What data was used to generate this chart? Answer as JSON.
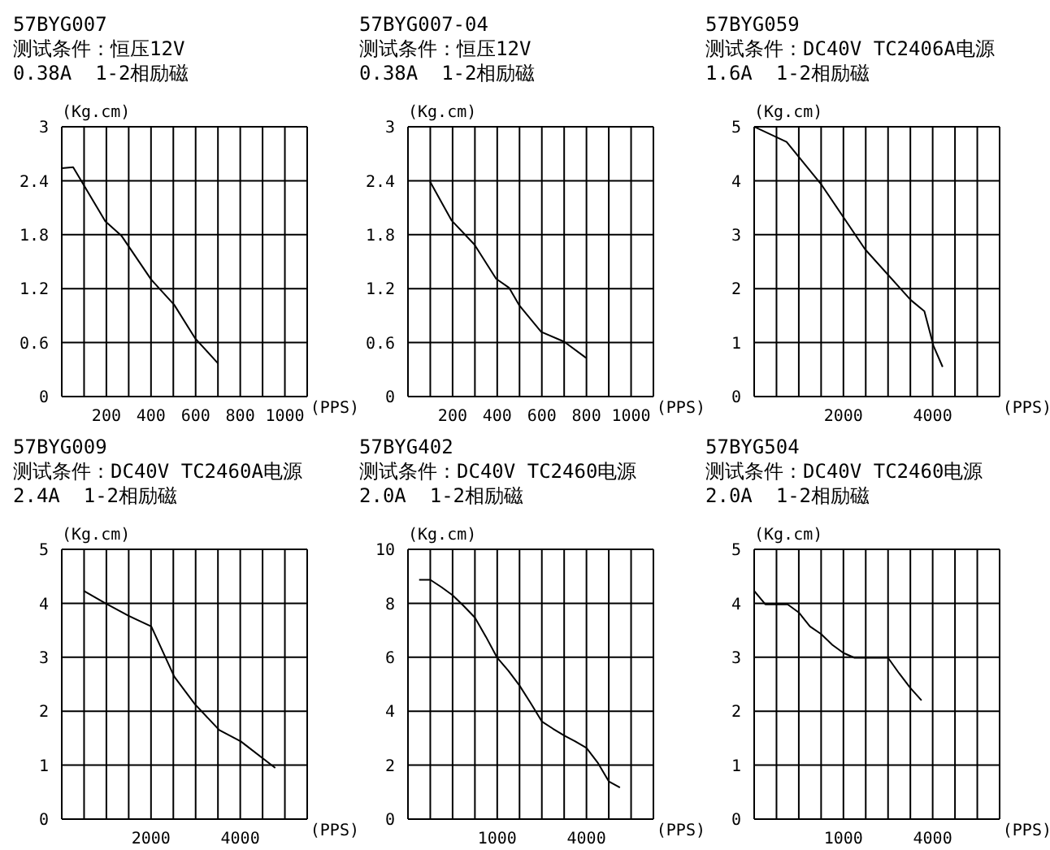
{
  "chart_data": [
    {
      "type": "line",
      "title": "57BYG007",
      "subtitle": "测试条件：恒压12V",
      "annotations": [
        "0.38A  1-2相励磁"
      ],
      "xlabel": "(PPS)",
      "ylabel": "(Kg.cm)",
      "color": "#000000",
      "marker": "none",
      "grid": true,
      "x": [
        0,
        51,
        195,
        267,
        401,
        504,
        597,
        700
      ],
      "values": [
        2.54,
        2.55,
        1.95,
        1.79,
        1.3,
        1.02,
        0.65,
        0.37
      ],
      "xlim": [
        0,
        1100
      ],
      "xticks": [
        {
          "value": 0,
          "label": null
        },
        {
          "value": 100,
          "label": null
        },
        200,
        {
          "value": 300,
          "label": null
        },
        400,
        {
          "value": 500,
          "label": null
        },
        600,
        {
          "value": 700,
          "label": null
        },
        800,
        {
          "value": 900,
          "label": null
        },
        1000,
        {
          "value": 1100,
          "label": null
        }
      ],
      "ylim": [
        0,
        3
      ],
      "yticks": [
        0,
        0.6,
        1.2,
        1.8,
        2.4,
        3
      ]
    },
    {
      "type": "line",
      "title": "57BYG007-04",
      "subtitle": "测试条件：恒压12V",
      "annotations": [
        "0.38A  1-2相励磁"
      ],
      "xlabel": "(PPS)",
      "ylabel": "(Kg.cm)",
      "color": "#000000",
      "marker": "none",
      "grid": true,
      "x": [
        99,
        195,
        298,
        395,
        453,
        500,
        597,
        700,
        798
      ],
      "values": [
        2.39,
        1.96,
        1.69,
        1.31,
        1.21,
        1.01,
        0.72,
        0.61,
        0.43
      ],
      "xlim": [
        0,
        1100
      ],
      "xticks": [
        {
          "value": 0,
          "label": null
        },
        {
          "value": 100,
          "label": null
        },
        200,
        {
          "value": 300,
          "label": null
        },
        400,
        {
          "value": 500,
          "label": null
        },
        600,
        {
          "value": 700,
          "label": null
        },
        800,
        {
          "value": 900,
          "label": null
        },
        1000,
        {
          "value": 1100,
          "label": null
        }
      ],
      "ylim": [
        0,
        3
      ],
      "yticks": [
        0,
        0.6,
        1.2,
        1.8,
        2.4,
        3
      ]
    },
    {
      "type": "line",
      "title": "57BYG059",
      "subtitle": "测试条件：DC40V TC2406A电源",
      "annotations": [
        "1.6A  1-2相励磁"
      ],
      "xlabel": "(PPS)",
      "ylabel": "(Kg.cm)",
      "color": "#000000",
      "marker": "none",
      "grid": true,
      "x": [
        0,
        726,
        1513,
        2485,
        3507,
        3814,
        4018,
        4223
      ],
      "values": [
        5.0,
        4.72,
        3.92,
        2.73,
        1.79,
        1.58,
        0.94,
        0.55
      ],
      "xlim": [
        0,
        5500
      ],
      "xticks": [
        {
          "value": 0,
          "label": null
        },
        {
          "value": 500,
          "label": null
        },
        {
          "value": 1000,
          "label": null
        },
        {
          "value": 1500,
          "label": null
        },
        2000,
        {
          "value": 2500,
          "label": null
        },
        {
          "value": 3000,
          "label": null
        },
        {
          "value": 3500,
          "label": null
        },
        4000,
        {
          "value": 4500,
          "label": null
        },
        {
          "value": 5000,
          "label": null
        },
        {
          "value": 5500,
          "label": null
        }
      ],
      "ylim": [
        0,
        5
      ],
      "yticks": [
        0,
        1,
        2,
        3,
        4,
        5
      ]
    },
    {
      "type": "line",
      "title": "57BYG009",
      "subtitle": "测试条件：DC40V TC2460A电源",
      "annotations": [
        "2.4A  1-2相励磁"
      ],
      "xlabel": "(PPS)",
      "ylabel": "(Kg.cm)",
      "color": "#000000",
      "marker": "none",
      "grid": true,
      "x": [
        494,
        977,
        1492,
        2006,
        2521,
        2984,
        3529,
        4013,
        4784
      ],
      "values": [
        4.23,
        4.0,
        3.77,
        3.57,
        2.64,
        2.13,
        1.65,
        1.44,
        0.95
      ],
      "xlim": [
        0,
        5500
      ],
      "xticks": [
        {
          "value": 0,
          "label": null
        },
        {
          "value": 500,
          "label": null
        },
        {
          "value": 1000,
          "label": null
        },
        {
          "value": 1500,
          "label": null
        },
        2000,
        {
          "value": 2500,
          "label": null
        },
        {
          "value": 3000,
          "label": null
        },
        {
          "value": 3500,
          "label": null
        },
        4000,
        {
          "value": 4500,
          "label": null
        },
        {
          "value": 5000,
          "label": null
        },
        {
          "value": 5500,
          "label": null
        }
      ],
      "ylim": [
        0,
        5
      ],
      "yticks": [
        0,
        1,
        2,
        3,
        4,
        5
      ]
    },
    {
      "type": "line",
      "title": "57BYG402",
      "subtitle": "测试条件：DC40V TC2460电源",
      "annotations": [
        "2.0A  1-2相励磁"
      ],
      "xlabel": "(PPS)",
      "ylabel": "(Kg.cm)",
      "color": "#000000",
      "marker": "none",
      "grid": true,
      "categories": [
        null,
        null,
        null,
        null,
        null,
        null,
        null,
        null,
        "1000",
        null,
        null,
        null,
        null,
        null,
        null,
        null,
        "4000",
        null,
        null,
        null,
        null,
        null,
        null
      ],
      "values": [
        null,
        8.87,
        8.87,
        8.6,
        8.3,
        7.9,
        7.47,
        6.75,
        5.98,
        5.5,
        4.95,
        4.3,
        3.62,
        3.35,
        3.1,
        2.88,
        2.64,
        2.1,
        1.4,
        1.17,
        null,
        null,
        null
      ],
      "ylim": [
        0,
        10
      ],
      "yticks": [
        0,
        2,
        4,
        6,
        8,
        10
      ]
    },
    {
      "type": "line",
      "title": "57BYG504",
      "subtitle": "测试条件：DC40V TC2460电源",
      "annotations": [
        "2.0A  1-2相励磁"
      ],
      "xlabel": "(PPS)",
      "ylabel": "(Kg.cm)",
      "color": "#000000",
      "marker": "none",
      "grid": true,
      "categories": [
        null,
        null,
        null,
        null,
        null,
        null,
        null,
        null,
        "1000",
        null,
        null,
        null,
        null,
        null,
        null,
        null,
        "4000",
        null,
        null,
        null,
        null,
        null,
        null
      ],
      "values": [
        4.23,
        3.98,
        3.98,
        3.98,
        3.83,
        3.57,
        3.43,
        3.23,
        3.08,
        2.99,
        2.99,
        2.99,
        2.99,
        2.7,
        2.43,
        2.2,
        null,
        null,
        null,
        null,
        null,
        null,
        null
      ],
      "ylim": [
        0,
        5
      ],
      "yticks": [
        0,
        1,
        2,
        3,
        4,
        5
      ]
    }
  ]
}
